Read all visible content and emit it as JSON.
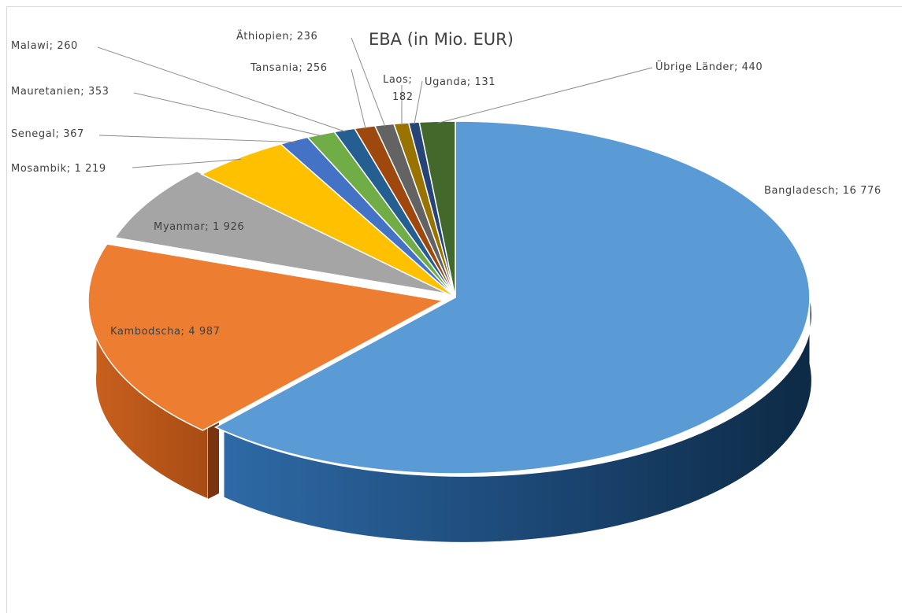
{
  "chart_data": {
    "type": "pie",
    "title": "EBA (in Mio. EUR)",
    "slices": [
      {
        "name": "Bangladesch",
        "value": 16776,
        "label": "Bangladesch; 16 776",
        "color": "#5b9bd5"
      },
      {
        "name": "Kambodscha",
        "value": 4987,
        "label": "Kambodscha; 4 987",
        "color": "#ed7d31"
      },
      {
        "name": "Myanmar",
        "value": 1926,
        "label": "Myanmar; 1 926",
        "color": "#a5a5a5"
      },
      {
        "name": "Mosambik",
        "value": 1219,
        "label": "Mosambik; 1 219",
        "color": "#ffc000"
      },
      {
        "name": "Senegal",
        "value": 367,
        "label": "Senegal; 367",
        "color": "#4472c4"
      },
      {
        "name": "Mauretanien",
        "value": 353,
        "label": "Mauretanien; 353",
        "color": "#70ad47"
      },
      {
        "name": "Malawi",
        "value": 260,
        "label": "Malawi; 260",
        "color": "#255e91"
      },
      {
        "name": "Tansania",
        "value": 256,
        "label": "Tansania; 256",
        "color": "#9e480e"
      },
      {
        "name": "Äthiopien",
        "value": 236,
        "label": "Äthiopien; 236",
        "color": "#636363"
      },
      {
        "name": "Laos",
        "value": 182,
        "label": "Laos; 182",
        "color": "#997300"
      },
      {
        "name": "Uganda",
        "value": 131,
        "label": "Uganda; 131",
        "color": "#264478"
      },
      {
        "name": "Übrige Länder",
        "value": 440,
        "label": "Übrige Länder; 440",
        "color": "#43682b"
      }
    ]
  }
}
